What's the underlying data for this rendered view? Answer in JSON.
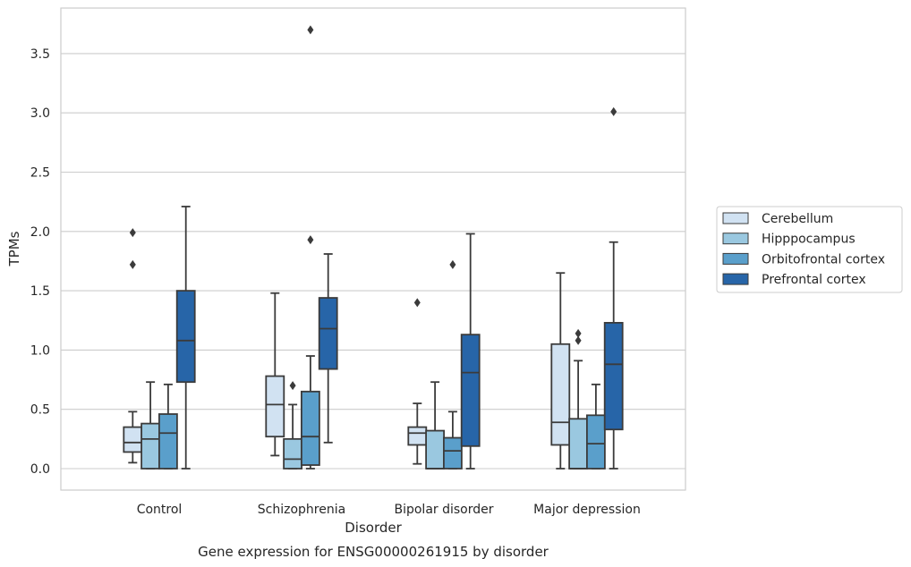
{
  "chart_data": {
    "type": "boxplot",
    "title": "",
    "caption": "Gene expression for ENSG00000261915 by disorder",
    "xlabel": "Disorder",
    "ylabel": "TPMs",
    "ylim": [
      -0.18,
      3.9
    ],
    "yticks": [
      "0.0",
      "0.5",
      "1.0",
      "1.5",
      "2.0",
      "2.5",
      "3.0",
      "3.5"
    ],
    "ytick_values": [
      0,
      0.5,
      1.0,
      1.5,
      2.0,
      2.5,
      3.0,
      3.5
    ],
    "grid": true,
    "legend_position": "right",
    "categories": [
      "Control",
      "Schizophrenia",
      "Bipolar disorder",
      "Major depression"
    ],
    "series": [
      {
        "name": "Cerebellum",
        "color": "#d1e2f2",
        "boxes": [
          {
            "whislo": 0.05,
            "q1": 0.14,
            "med": 0.22,
            "q3": 0.35,
            "whishi": 0.48,
            "fliers": [
              1.72,
              1.99
            ]
          },
          {
            "whislo": 0.11,
            "q1": 0.27,
            "med": 0.54,
            "q3": 0.78,
            "whishi": 1.48,
            "fliers": []
          },
          {
            "whislo": 0.04,
            "q1": 0.2,
            "med": 0.3,
            "q3": 0.35,
            "whishi": 0.55,
            "fliers": [
              1.4
            ]
          },
          {
            "whislo": 0.0,
            "q1": 0.2,
            "med": 0.39,
            "q3": 1.05,
            "whishi": 1.65,
            "fliers": []
          }
        ]
      },
      {
        "name": "Hipppocampus",
        "color": "#9ac8e0",
        "boxes": [
          {
            "whislo": 0.0,
            "q1": 0.0,
            "med": 0.25,
            "q3": 0.38,
            "whishi": 0.73,
            "fliers": []
          },
          {
            "whislo": 0.0,
            "q1": 0.0,
            "med": 0.08,
            "q3": 0.25,
            "whishi": 0.54,
            "fliers": [
              0.7
            ]
          },
          {
            "whislo": 0.0,
            "q1": 0.0,
            "med": 0.0,
            "q3": 0.32,
            "whishi": 0.73,
            "fliers": []
          },
          {
            "whislo": 0.0,
            "q1": 0.0,
            "med": 0.0,
            "q3": 0.42,
            "whishi": 0.91,
            "fliers": [
              1.08,
              1.14
            ]
          }
        ]
      },
      {
        "name": "Orbitofrontal cortex",
        "color": "#5a9fcb",
        "boxes": [
          {
            "whislo": 0.0,
            "q1": 0.0,
            "med": 0.3,
            "q3": 0.46,
            "whishi": 0.71,
            "fliers": []
          },
          {
            "whislo": 0.0,
            "q1": 0.03,
            "med": 0.27,
            "q3": 0.65,
            "whishi": 0.95,
            "fliers": [
              1.93,
              3.7
            ]
          },
          {
            "whislo": 0.0,
            "q1": 0.0,
            "med": 0.15,
            "q3": 0.26,
            "whishi": 0.48,
            "fliers": [
              1.72
            ]
          },
          {
            "whislo": 0.0,
            "q1": 0.0,
            "med": 0.21,
            "q3": 0.45,
            "whishi": 0.71,
            "fliers": []
          }
        ]
      },
      {
        "name": "Prefrontal cortex",
        "color": "#2765a8",
        "boxes": [
          {
            "whislo": 0.0,
            "q1": 0.73,
            "med": 1.08,
            "q3": 1.5,
            "whishi": 2.21,
            "fliers": []
          },
          {
            "whislo": 0.22,
            "q1": 0.84,
            "med": 1.18,
            "q3": 1.44,
            "whishi": 1.81,
            "fliers": []
          },
          {
            "whislo": 0.0,
            "q1": 0.19,
            "med": 0.81,
            "q3": 1.13,
            "whishi": 1.98,
            "fliers": []
          },
          {
            "whislo": 0.0,
            "q1": 0.33,
            "med": 0.88,
            "q3": 1.23,
            "whishi": 1.91,
            "fliers": [
              3.01
            ]
          }
        ]
      }
    ]
  }
}
